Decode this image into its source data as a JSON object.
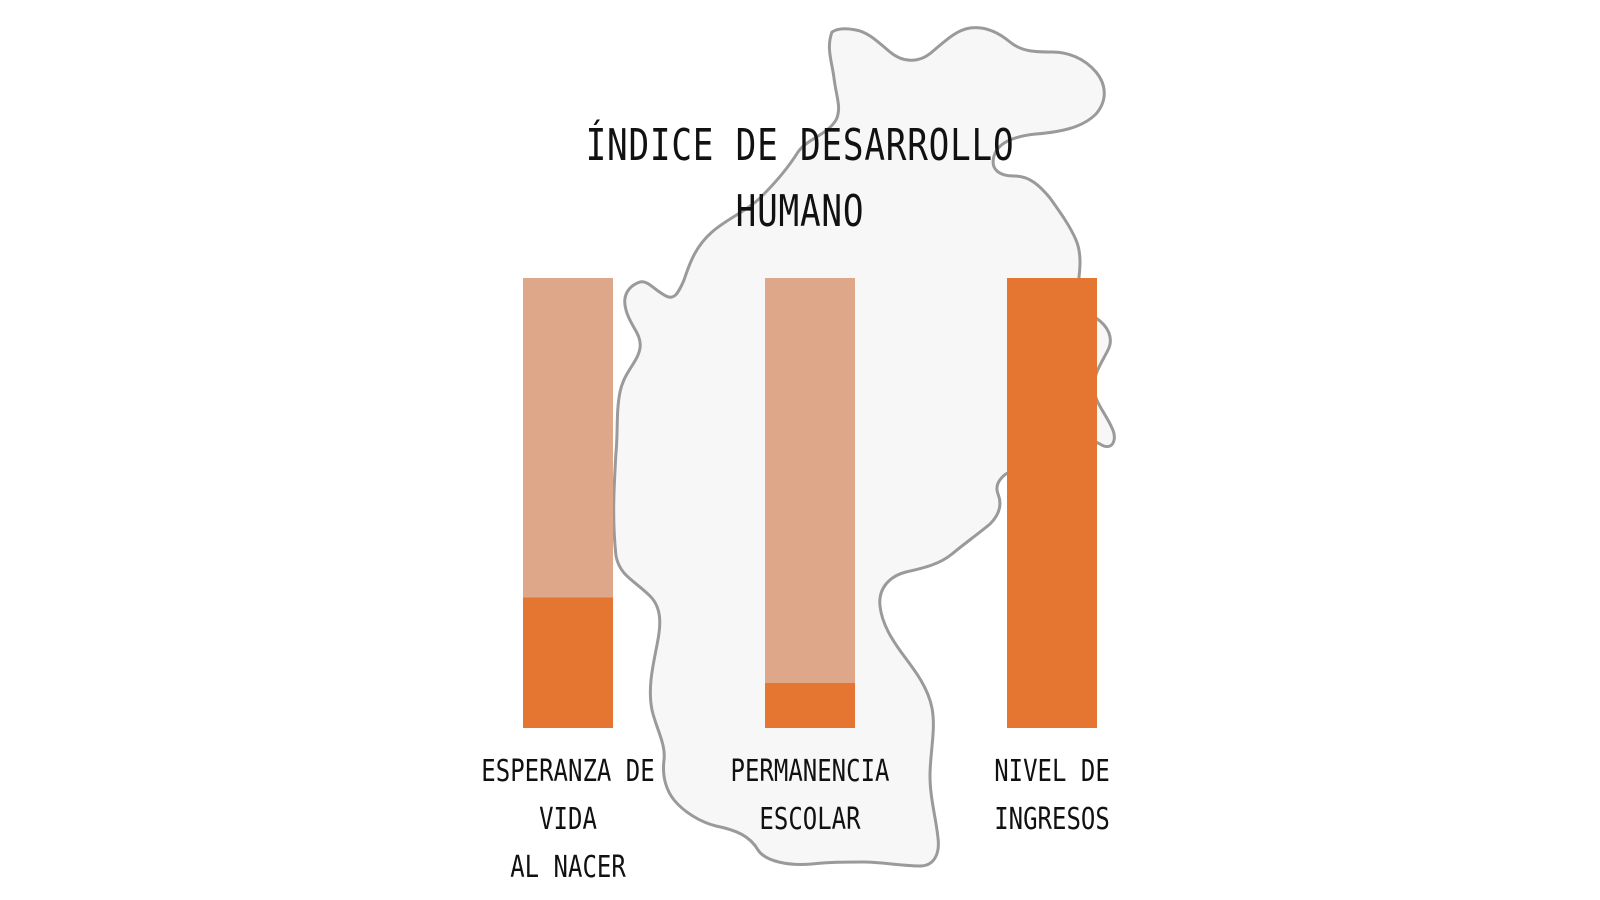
{
  "chart_data": {
    "type": "bar",
    "title_lines": [
      "ÍNDICE DE DESARROLLO",
      "HUMANO"
    ],
    "categories": [
      [
        "ESPERANZA DE VIDA",
        "AL NACER"
      ],
      [
        "PERMANENCIA",
        "ESCOLAR"
      ],
      [
        "NIVEL DE INGRESOS"
      ]
    ],
    "values": [
      0.29,
      0.1,
      1.0
    ],
    "ylim": [
      0,
      1
    ],
    "colors": {
      "filled": "#E57632",
      "remaining": "#DFA78A",
      "map_fill": "#F7F7F7",
      "map_stroke": "#9A9A9A"
    }
  }
}
